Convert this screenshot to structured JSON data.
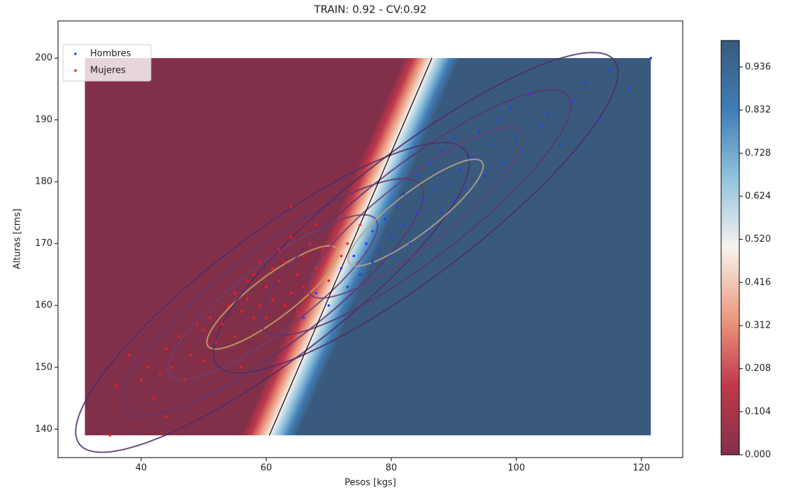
{
  "chart_data": {
    "type": "scatter",
    "title": "TRAIN: 0.92 - CV:0.92",
    "xlabel": "Pesos [kgs]",
    "ylabel": "Alturas [cms]",
    "xlim": [
      26.7,
      126.6
    ],
    "ylim": [
      135.4,
      206
    ],
    "xticks": [
      40,
      60,
      80,
      100,
      120
    ],
    "yticks": [
      140,
      150,
      160,
      170,
      180,
      190,
      200
    ],
    "legend": "upper left",
    "series": [
      {
        "name": "Hombres",
        "color": "#1f3fff",
        "x": [
          66,
          68,
          70,
          72,
          73,
          74,
          75,
          76,
          77,
          77,
          78,
          79,
          80,
          80,
          81,
          82,
          82,
          83,
          84,
          84,
          85,
          86,
          86,
          87,
          88,
          88,
          89,
          90,
          90,
          91,
          92,
          93,
          94,
          95,
          96,
          97,
          98,
          99,
          100,
          101,
          102,
          104,
          105,
          107,
          109,
          111,
          113,
          115,
          118,
          121.5
        ],
        "values": [
          158,
          162,
          160,
          166,
          163,
          168,
          165,
          170,
          167,
          172,
          169,
          174,
          171,
          168,
          176,
          173,
          178,
          170,
          175,
          181,
          177,
          172,
          183,
          179,
          175,
          185,
          180,
          177,
          187,
          182,
          179,
          184,
          188,
          181,
          186,
          190,
          183,
          192,
          187,
          185,
          194,
          189,
          191,
          186,
          193,
          196,
          190,
          198,
          195,
          200
        ]
      },
      {
        "name": "Mujeres",
        "color": "#ff1a1a",
        "x": [
          36,
          38,
          40,
          41,
          42,
          43,
          44,
          45,
          46,
          47,
          48,
          49,
          50,
          50,
          51,
          52,
          53,
          54,
          55,
          55,
          56,
          57,
          57,
          58,
          58,
          59,
          59,
          60,
          60,
          61,
          61,
          62,
          62,
          63,
          63,
          64,
          64,
          65,
          65,
          66,
          66,
          67,
          68,
          68,
          69,
          70,
          71,
          72,
          73,
          75,
          35,
          44,
          56,
          64
        ],
        "values": [
          147,
          152,
          148,
          150,
          145,
          149,
          153,
          150,
          155,
          148,
          152,
          157,
          151,
          156,
          158,
          154,
          157,
          160,
          155,
          162,
          159,
          161,
          164,
          158,
          165,
          160,
          167,
          163,
          158,
          166,
          161,
          169,
          164,
          160,
          167,
          162,
          171,
          165,
          159,
          168,
          163,
          170,
          166,
          173,
          169,
          164,
          172,
          168,
          170,
          173,
          139,
          142,
          150,
          176
        ]
      }
    ],
    "field": {
      "xlim": [
        31,
        121.5
      ],
      "ylim": [
        139,
        200
      ],
      "boundary": {
        "x": [
          60.5,
          86.5
        ],
        "y": [
          139,
          200
        ],
        "color": "#000000"
      },
      "transition": 4.5,
      "colormap": [
        "#82304a",
        "#c0384a",
        "#ec9c80",
        "#f7f3ef",
        "#92c3dd",
        "#3f7db5",
        "#3a5a7d"
      ]
    },
    "contours": [
      {
        "center": [
          61,
          161.3
        ],
        "major": [
          10.3,
          7.9
        ],
        "minor": [
          2,
          -2.7
        ],
        "scales": [
          1,
          1.6,
          2.3,
          3.0
        ],
        "colors": [
          "#c9a35f",
          "#6b4075",
          "#5c3570",
          "#4e2d68"
        ]
      },
      {
        "center": [
          83.9,
          175
        ],
        "major": [
          10.6,
          8.2
        ],
        "minor": [
          2,
          -2.7
        ],
        "scales": [
          1,
          1.6,
          2.3,
          3.0
        ],
        "colors": [
          "#b7a58a",
          "#6b4075",
          "#5c3570",
          "#4e2d68"
        ]
      }
    ],
    "colorbar": {
      "lim": [
        0,
        1
      ],
      "ticks": [
        {
          "value": 0,
          "label": "0.000"
        },
        0.104,
        0.208,
        0.312,
        0.416,
        {
          "value": 0.52,
          "label": "0.520"
        },
        0.624,
        0.728,
        0.832,
        0.936
      ]
    }
  }
}
